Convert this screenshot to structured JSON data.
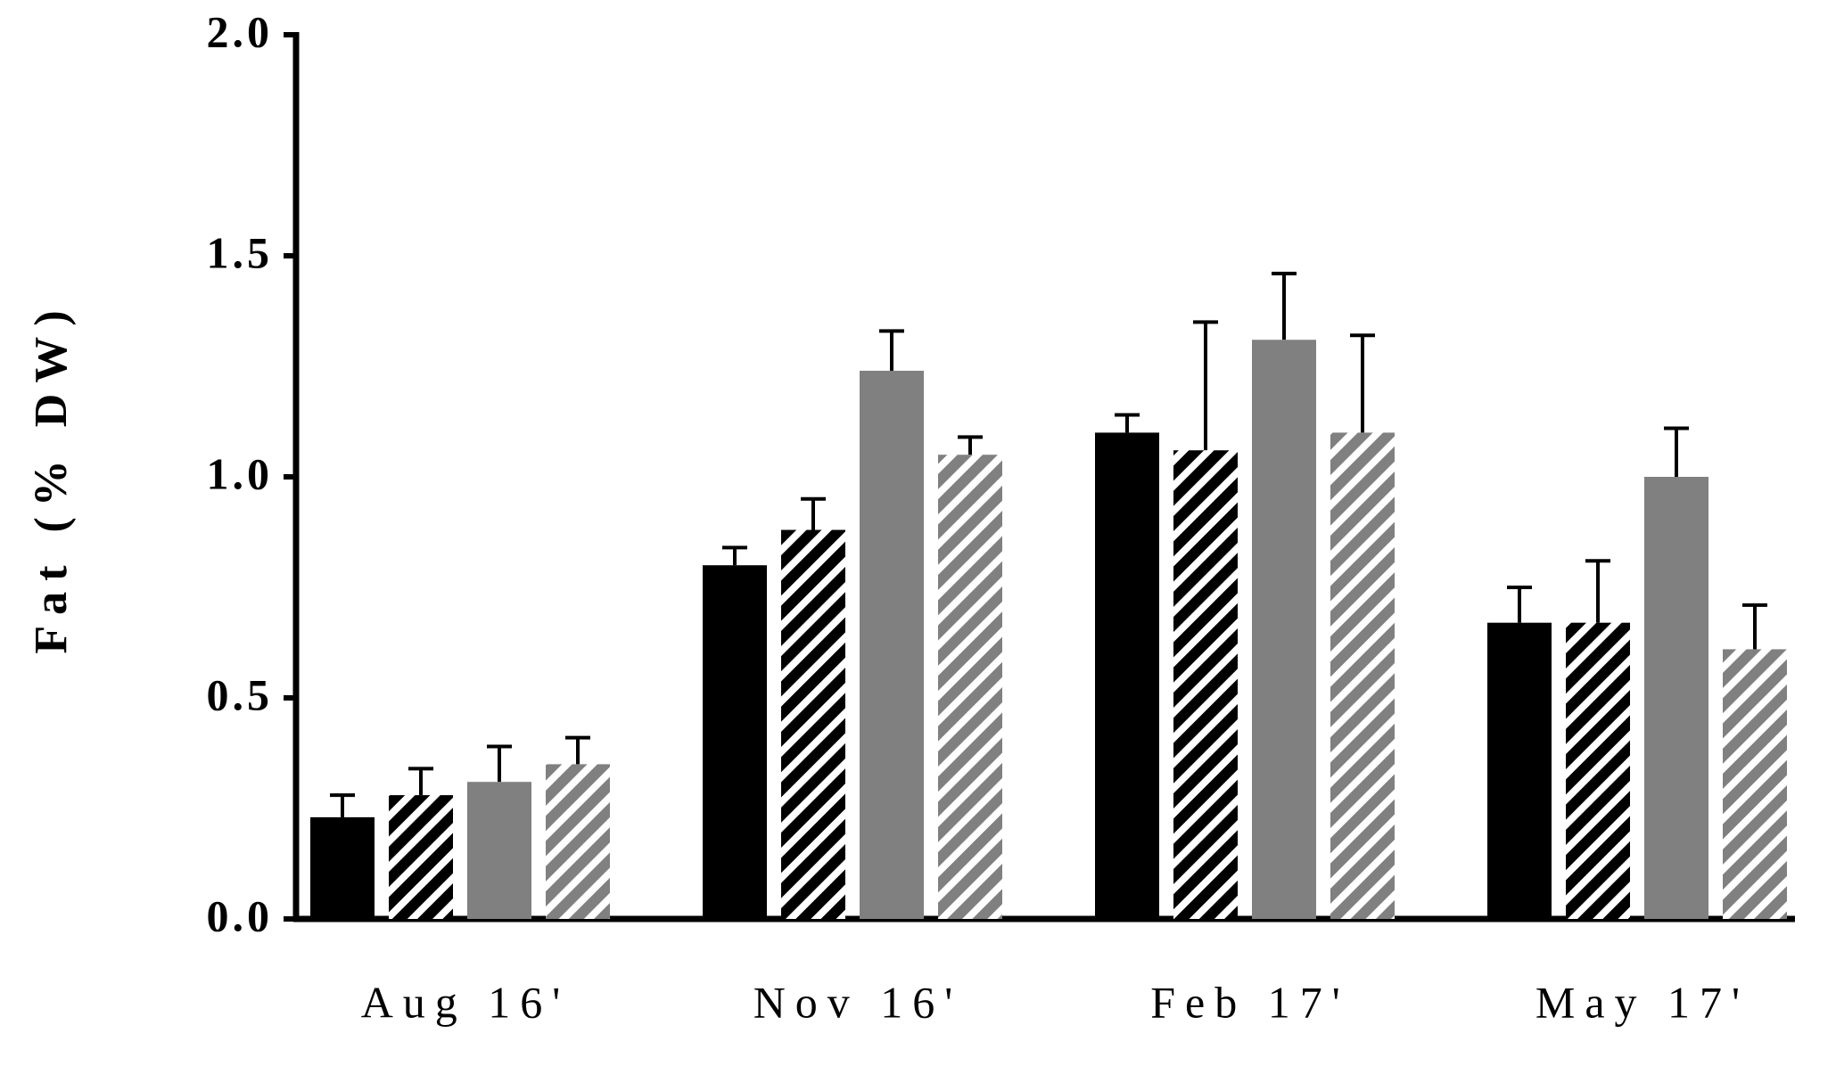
{
  "chart_data": {
    "type": "bar",
    "y_label": "Fat (% DW)",
    "categories": [
      "Aug 16'",
      "Nov 16'",
      "Feb 17'",
      "May 17'"
    ],
    "series": [
      {
        "color": "#000000",
        "hatched": false,
        "values": [
          0.23,
          0.8,
          1.1,
          0.67
        ],
        "errors": [
          0.05,
          0.04,
          0.04,
          0.08
        ]
      },
      {
        "color": "#000000",
        "hatched": true,
        "values": [
          0.28,
          0.88,
          1.06,
          0.67
        ],
        "errors": [
          0.06,
          0.07,
          0.29,
          0.14
        ]
      },
      {
        "color": "#808080",
        "hatched": false,
        "values": [
          0.31,
          1.24,
          1.31,
          1.0
        ],
        "errors": [
          0.08,
          0.09,
          0.15,
          0.11
        ]
      },
      {
        "color": "#808080",
        "hatched": true,
        "values": [
          0.35,
          1.05,
          1.1,
          0.61
        ],
        "errors": [
          0.06,
          0.04,
          0.22,
          0.1
        ]
      }
    ],
    "ylim": [
      0,
      2
    ],
    "yticks": [
      {
        "value": 0,
        "label": "0.0"
      },
      0.5,
      {
        "value": 1,
        "label": "1.0"
      },
      1.5,
      {
        "value": 2,
        "label": "2.0"
      }
    ]
  }
}
